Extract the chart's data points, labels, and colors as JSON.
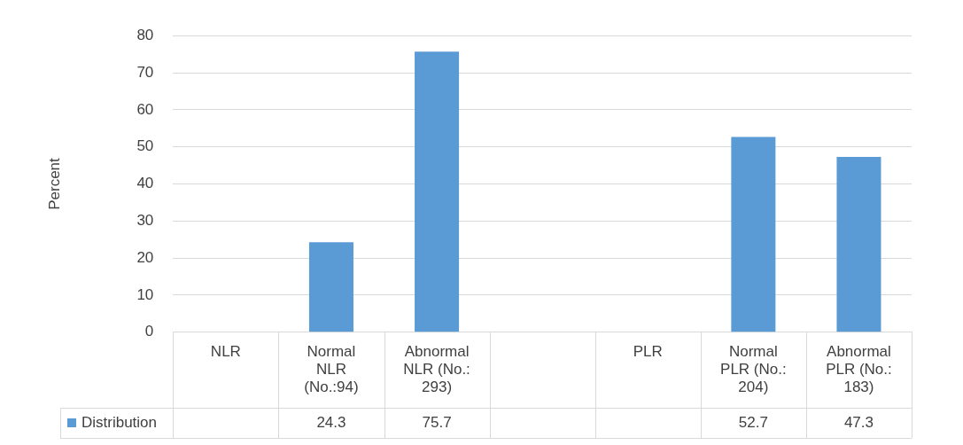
{
  "chart_data": {
    "type": "bar",
    "ylabel": "Percent",
    "categories": [
      "NLR",
      "Normal NLR (No.:94)",
      "Abnormal NLR (No.: 293)",
      null,
      "PLR",
      "Normal PLR (No.: 204)",
      "Abnormal PLR (No.: 183)"
    ],
    "series": [
      {
        "name": "Distribution",
        "color": "#5b9bd5",
        "values": [
          null,
          24.3,
          75.7,
          null,
          null,
          52.7,
          47.3
        ]
      }
    ],
    "ylim": [
      0,
      80
    ],
    "yticks": [
      0,
      10,
      20,
      30,
      40,
      50,
      60,
      70,
      80
    ],
    "grid": "y",
    "legend": "bottom",
    "data_labels": true
  }
}
